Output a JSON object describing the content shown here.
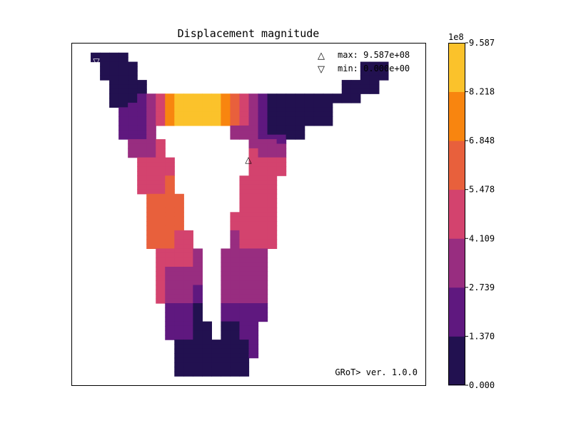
{
  "chart_data": {
    "type": "heatmap",
    "title": "Displacement magnitude",
    "colorbar": {
      "exponent_label": "1e8",
      "tick_labels": [
        "0.000",
        "1.370",
        "2.739",
        "4.109",
        "5.478",
        "6.848",
        "8.218",
        "9.587"
      ],
      "range": [
        0,
        9.587
      ],
      "bins": 7,
      "colors": [
        "#221150",
        "#5f187f",
        "#982d80",
        "#d3436e",
        "#e8603c",
        "#f8850f",
        "#fbc22b"
      ]
    },
    "annotations": {
      "max_marker": "△",
      "max_label": "max: 9.587e+08",
      "max_color": "#f8850f",
      "min_marker": "▽",
      "min_label": "min: 0.000e+00",
      "version": "GRoT> ver. 1.0.0"
    },
    "grid": {
      "legend": {
        ".": "empty",
        "0": "bin 0",
        "1": "bin 1",
        "2": "bin 2",
        "3": "bin 3",
        "4": "bin 4",
        "5": "bin 5",
        "6": "bin 6"
      },
      "rows": [
        "......................................",
        "......................................",
        "..0000..............................",
        "..0000..............................",
        "...0000........................000....",
        "...0000........................000....",
        "...0000........................000....",
        "...0000........................000....",
        "....0000.....................0000.....",
        "....0000.....................0000.....",
        "....0000.....................0000.....",
        "....000123566666543210000000000.......",
        "....000123566666543210000000000.......",
        "....001123566666543210000000..........",
        ".....11123566666543210000000..........",
        ".....11123566666543210000000..........",
        ".....11123566666543210000000..........",
        ".....11123566666543210000000..........",
        ".....1112........22210000.............",
        ".....1112........22210000.............",
        ".....1112........22211100.............",
        "......2223.........2221...............",
        "......2223.........2222...............",
        "......2223.........3222...............",
        "......2223.........3222...............",
        ".......3333........3333...............",
        ".......3333........3333...............",
        ".......3333........3333...............",
        ".......3333........3333...............",
        ".......3334.......3333................",
        ".......3334.......3333................",
        ".......3334.......3333................",
        ".......3334.......3333................",
        "........4444......3333................",
        "........4444......3333................",
        "........4444......3333................",
        "........4444......3333................",
        "........4444.....33333................",
        "........4444.....33333................",
        "........4444.....33333................",
        "........4444.....33333................",
        "........44433....23333................",
        "........44433....23333................",
        "........44433....23333................",
        "........44433....23333................",
        ".........33332..22222.................",
        ".........33332..22222.................",
        ".........33332..22222.................",
        ".........33332..22222.................",
        ".........32222..22222.................",
        ".........32222..22222.................",
        ".........32222..22222.................",
        ".........32222..22222.................",
        ".........32221..22222.................",
        ".........32221..22222.................",
        ".........32221..22222.................",
        ".........32221..22222.................",
        "..........1110..11111.................",
        "..........1110..11111.................",
        "..........1110..11111.................",
        "..........1110..11111.................",
        "..........11100.0011..................",
        "..........11100.0011..................",
        "..........11100.0011..................",
        "..........11100.0011..................",
        "...........000000001..................",
        "...........000000001..................",
        "...........000000001..................",
        "...........000000001..................",
        "...........00000000...................",
        "...........00000000...................",
        "...........00000000...................",
        "...........00000000...................",
        "......................................",
        "......................................"
      ]
    }
  }
}
